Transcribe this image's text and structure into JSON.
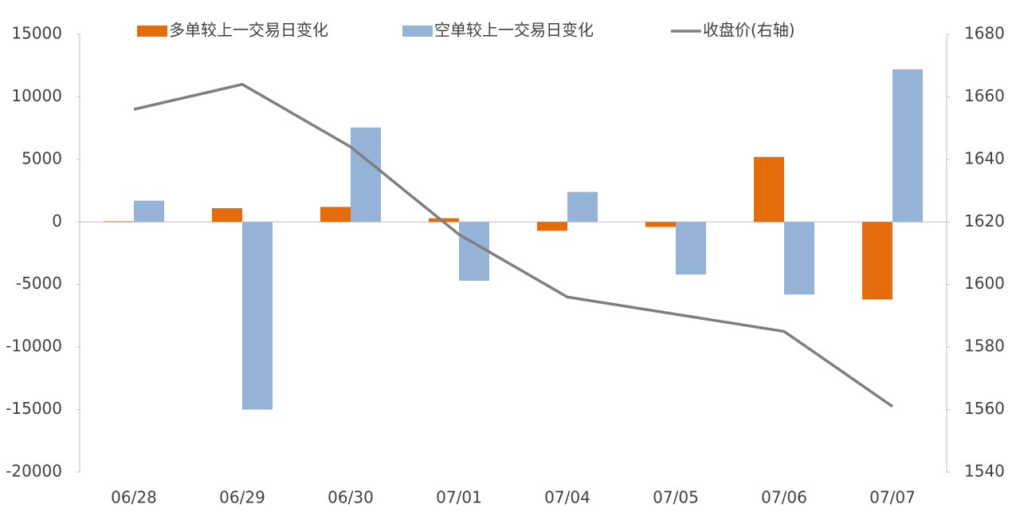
{
  "chart_data": {
    "type": "bar_line",
    "categories": [
      "06/28",
      "06/29",
      "06/30",
      "07/01",
      "07/04",
      "07/05",
      "07/06",
      "07/07"
    ],
    "series": [
      {
        "name": "多单较上一交易日变化",
        "type": "bar",
        "color": "#e46c0a",
        "values": [
          50,
          1100,
          1200,
          300,
          -700,
          -400,
          5200,
          -6200
        ]
      },
      {
        "name": "空单较上一交易日变化",
        "type": "bar",
        "color": "#95b3d7",
        "values": [
          1700,
          -15000,
          7550,
          -4700,
          2400,
          -4200,
          -5800,
          12200
        ]
      },
      {
        "name": "收盘价(右轴)",
        "type": "line",
        "axis": "y2",
        "color": "#7f7f7f",
        "values": [
          1656,
          1664,
          1644,
          1616,
          1596,
          1590.5,
          1585,
          1561
        ]
      }
    ],
    "ylim": [
      -20000,
      15000
    ],
    "yticks": [
      -20000,
      -15000,
      -10000,
      -5000,
      0,
      5000,
      10000,
      15000
    ],
    "y2lim": [
      1540,
      1680
    ],
    "y2ticks": [
      1540,
      1560,
      1580,
      1600,
      1620,
      1640,
      1660,
      1680
    ],
    "legend": "top"
  }
}
